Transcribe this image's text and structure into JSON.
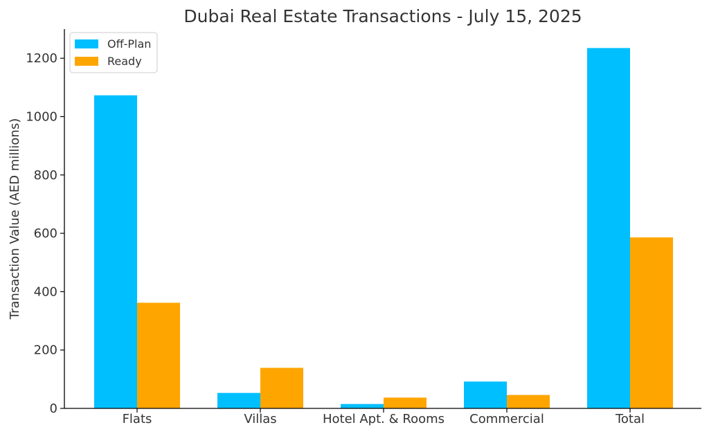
{
  "chart_data": {
    "type": "bar",
    "title": "Dubai Real Estate Transactions - July 15, 2025",
    "xlabel": "",
    "ylabel": "Transaction Value (AED millions)",
    "categories": [
      "Flats",
      "Villas",
      "Hotel Apt. & Rooms",
      "Commercial",
      "Total"
    ],
    "series": [
      {
        "name": "Off-Plan",
        "color": "#00BFFF",
        "values": [
          1073,
          53,
          15,
          92,
          1235
        ]
      },
      {
        "name": "Ready",
        "color": "#FFA500",
        "values": [
          362,
          139,
          37,
          46,
          586
        ]
      }
    ],
    "ylim": [
      0,
      1300
    ],
    "yticks": [
      0,
      200,
      400,
      600,
      800,
      1000,
      1200
    ],
    "grid": false,
    "legend_position": "top-left"
  }
}
